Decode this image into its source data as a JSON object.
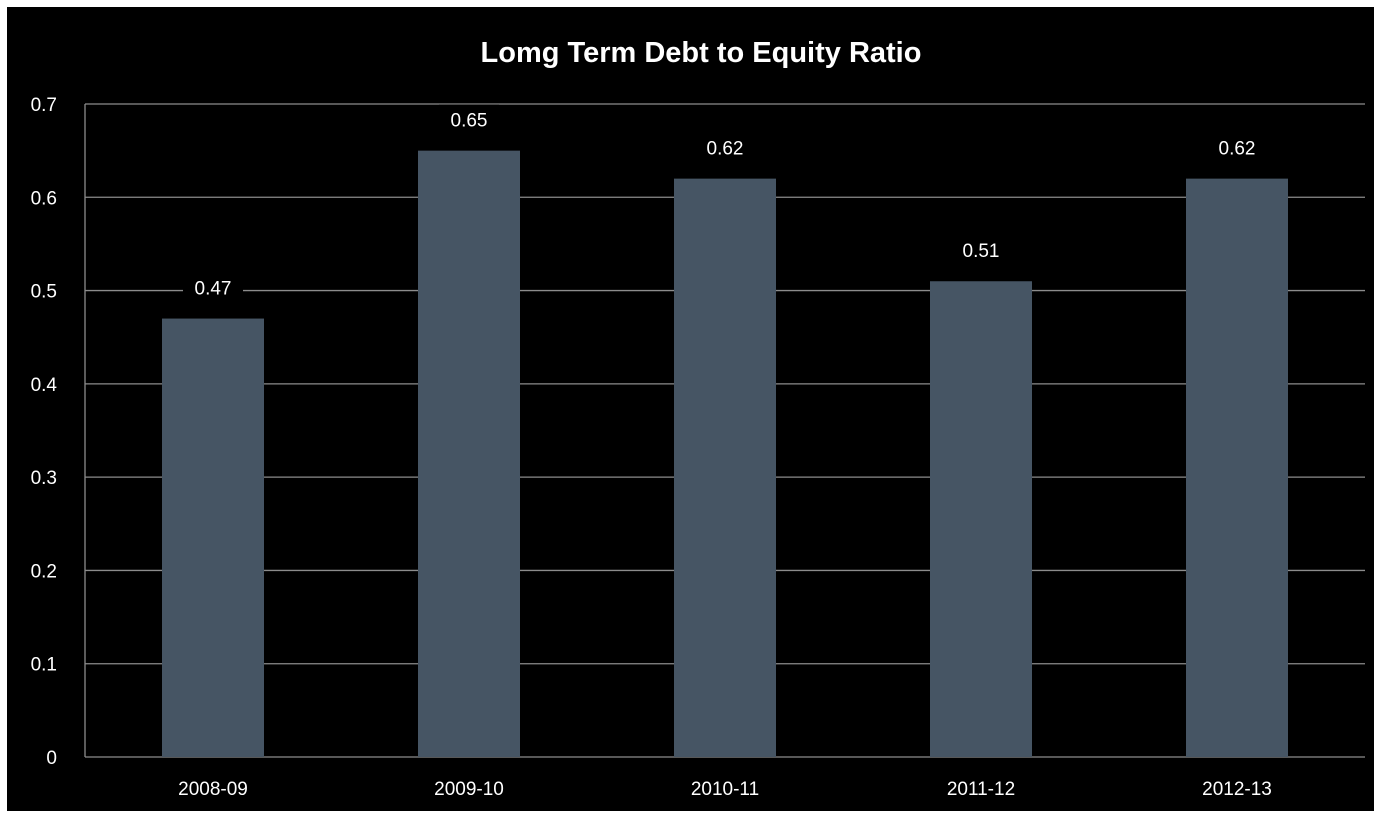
{
  "chart_data": {
    "type": "bar",
    "title": "Lomg Term Debt to Equity Ratio",
    "categories": [
      "2008-09",
      "2009-10",
      "2010-11",
      "2011-12",
      "2012-13"
    ],
    "values": [
      0.47,
      0.65,
      0.62,
      0.51,
      0.62
    ],
    "data_labels": [
      "0.47",
      "0.65",
      "0.62",
      "0.51",
      "0.62"
    ],
    "y_ticks": [
      "0",
      "0.1",
      "0.2",
      "0.3",
      "0.4",
      "0.5",
      "0.6",
      "0.7"
    ],
    "ylim": [
      0,
      0.7
    ],
    "xlabel": "",
    "ylabel": "",
    "grid": true,
    "legend": "none",
    "colors": {
      "background": "#000000",
      "bar": "#465564",
      "gridline": "#8c8c8c",
      "text": "#ffffff"
    }
  }
}
